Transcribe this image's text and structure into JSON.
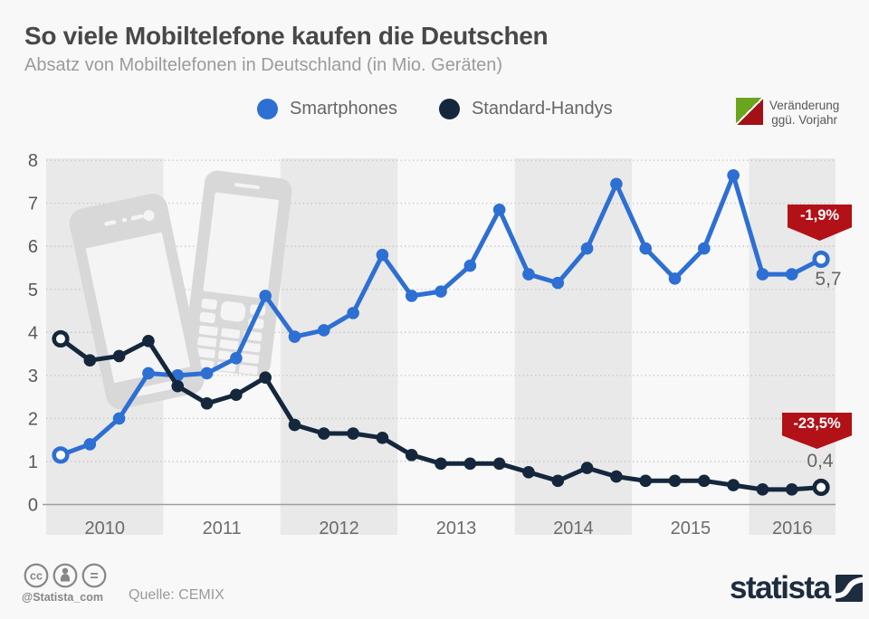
{
  "header": {
    "title": "So viele Mobiltelefone kaufen die Deutschen",
    "subtitle": "Absatz von Mobiltelefonen in Deutschland (in Mio. Geräten)"
  },
  "legend": {
    "items": [
      {
        "label": "Smartphones",
        "color": "#2d6fd3"
      },
      {
        "label": "Standard-Handys",
        "color": "#14273c"
      }
    ],
    "change": {
      "line1": "Veränderung",
      "line2": "ggü. Vorjahr",
      "up_color": "#6ba51f",
      "down_color": "#a31117"
    }
  },
  "chart_data": {
    "type": "line",
    "unit": "Mio. Geräte",
    "x": [
      "Q1 2010",
      "Q2 2010",
      "Q3 2010",
      "Q4 2010",
      "Q1 2011",
      "Q2 2011",
      "Q3 2011",
      "Q4 2011",
      "Q1 2012",
      "Q2 2012",
      "Q3 2012",
      "Q4 2012",
      "Q1 2013",
      "Q2 2013",
      "Q3 2013",
      "Q4 2013",
      "Q1 2014",
      "Q2 2014",
      "Q3 2014",
      "Q4 2014",
      "Q1 2015",
      "Q2 2015",
      "Q3 2015",
      "Q4 2015",
      "Q1 2016",
      "Q2 2016",
      "Q3 2016"
    ],
    "year_labels": [
      "2010",
      "2011",
      "2012",
      "2013",
      "2014",
      "2015",
      "2016"
    ],
    "ylim": [
      0,
      8
    ],
    "yticks": [
      0,
      1,
      2,
      3,
      4,
      5,
      6,
      7,
      8
    ],
    "grid": "horizontal dotted, alternating gray year bands",
    "legend_position": "top center",
    "series": [
      {
        "name": "Smartphones",
        "color": "#2d6fd3",
        "values": [
          1.15,
          1.4,
          2.0,
          3.05,
          3.0,
          3.05,
          3.4,
          4.85,
          3.9,
          4.05,
          4.45,
          5.8,
          4.85,
          4.95,
          5.55,
          6.85,
          5.35,
          5.15,
          5.95,
          7.45,
          5.95,
          5.25,
          5.95,
          7.65,
          5.35,
          5.35,
          5.7
        ],
        "last_value_label": "5,7",
        "change_vs_prev_year": "-1,9%"
      },
      {
        "name": "Standard-Handys",
        "color": "#14273c",
        "values": [
          3.85,
          3.35,
          3.45,
          3.8,
          2.75,
          2.35,
          2.55,
          2.95,
          1.85,
          1.65,
          1.65,
          1.55,
          1.15,
          0.95,
          0.95,
          0.95,
          0.75,
          0.55,
          0.85,
          0.65,
          0.55,
          0.55,
          0.55,
          0.45,
          0.35,
          0.35,
          0.4
        ],
        "last_value_label": "0,4",
        "change_vs_prev_year": "-23,5%"
      }
    ]
  },
  "annotations": {
    "badge_color": "#b11117"
  },
  "footer": {
    "handle": "@Statista_com",
    "source": "Quelle: CEMIX",
    "logo_text": "statista",
    "cc_text": "cc",
    "nd_text": "=",
    "cc_icons": [
      "cc-icon",
      "attribution-person-icon",
      "no-derivatives-icon"
    ]
  }
}
